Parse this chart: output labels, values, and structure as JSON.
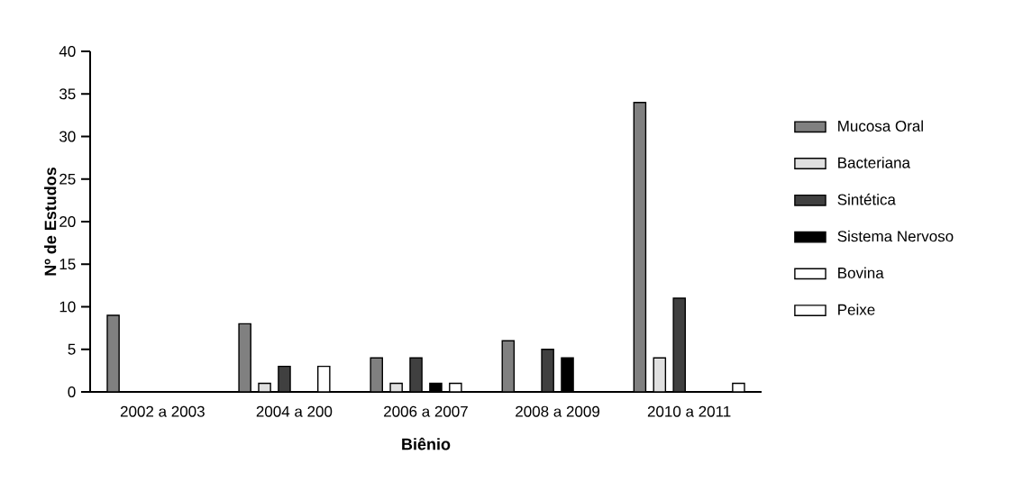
{
  "chart_data": {
    "type": "bar",
    "xlabel": "Biênio",
    "ylabel": "Nº de Estudos",
    "categories": [
      "2002 a 2003",
      "2004 a 200",
      "2006 a 2007",
      "2008 a 2009",
      "2010 a 2011"
    ],
    "series": [
      {
        "name": "Mucosa Oral",
        "color": "#808080",
        "values": [
          9,
          8,
          4,
          6,
          34
        ]
      },
      {
        "name": "Bacteriana",
        "color": "#e0e0e0",
        "values": [
          null,
          1,
          1,
          null,
          4
        ]
      },
      {
        "name": "Sintética",
        "color": "#404040",
        "values": [
          null,
          3,
          4,
          5,
          11
        ]
      },
      {
        "name": "Sistema Nervoso",
        "color": "#000000",
        "values": [
          null,
          null,
          1,
          4,
          null
        ]
      },
      {
        "name": "Bovina",
        "color": "#ffffff",
        "values": [
          null,
          3,
          1,
          null,
          null
        ]
      },
      {
        "name": "Peixe",
        "color": "#ffffff",
        "values": [
          null,
          null,
          null,
          null,
          1
        ]
      }
    ],
    "ylim": [
      0,
      40
    ],
    "yticks": [
      0,
      5,
      10,
      15,
      20,
      25,
      30,
      35,
      40
    ],
    "grid": false,
    "legend": "right"
  }
}
